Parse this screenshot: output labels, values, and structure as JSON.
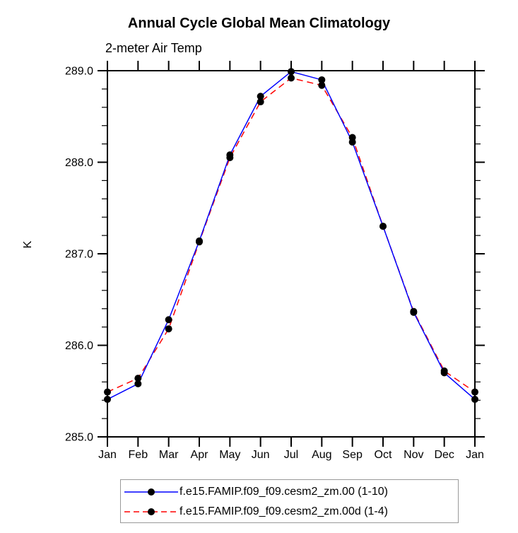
{
  "chart_data": {
    "type": "line",
    "title": "Annual Cycle Global Mean Climatology",
    "subtitle": "2-meter Air Temp",
    "ylabel": "K",
    "categories": [
      "Jan",
      "Feb",
      "Mar",
      "Apr",
      "May",
      "Jun",
      "Jul",
      "Aug",
      "Sep",
      "Oct",
      "Nov",
      "Dec",
      "Jan"
    ],
    "ylim": [
      285.0,
      289.0
    ],
    "ytick_major": 1.0,
    "ytick_minor": 0.2,
    "ytick_labels": [
      "285.0",
      "286.0",
      "287.0",
      "288.0",
      "289.0"
    ],
    "grid": false,
    "legend_position": "bottom",
    "marker": "black-dot",
    "series": [
      {
        "name": "f.e15.FAMIP.f09_f09.cesm2_zm.00 (1-10)",
        "color": "#0000ff",
        "style": "solid",
        "values": [
          285.41,
          285.58,
          286.28,
          287.14,
          288.08,
          288.72,
          288.99,
          288.9,
          288.22,
          287.3,
          286.36,
          285.7,
          285.41
        ]
      },
      {
        "name": "f.e15.FAMIP.f09_f09.cesm2_zm.00d (1-4)",
        "color": "#ff0000",
        "style": "dashed",
        "values": [
          285.49,
          285.64,
          286.18,
          287.13,
          288.05,
          288.66,
          288.92,
          288.84,
          288.27,
          287.3,
          286.37,
          285.72,
          285.49
        ]
      }
    ]
  },
  "colors": {
    "axis": "#000000",
    "marker": "#000000",
    "text": "#000000",
    "background": "#ffffff",
    "legend_border": "#999999"
  }
}
